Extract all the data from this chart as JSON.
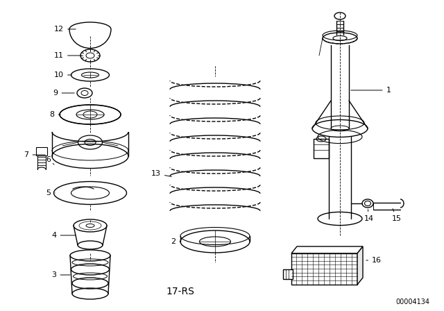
{
  "background_color": "#ffffff",
  "line_color": "#000000",
  "diagram_code": "17-RS",
  "part_number": "00004134",
  "fig_width": 6.4,
  "fig_height": 4.48,
  "dpi": 100
}
